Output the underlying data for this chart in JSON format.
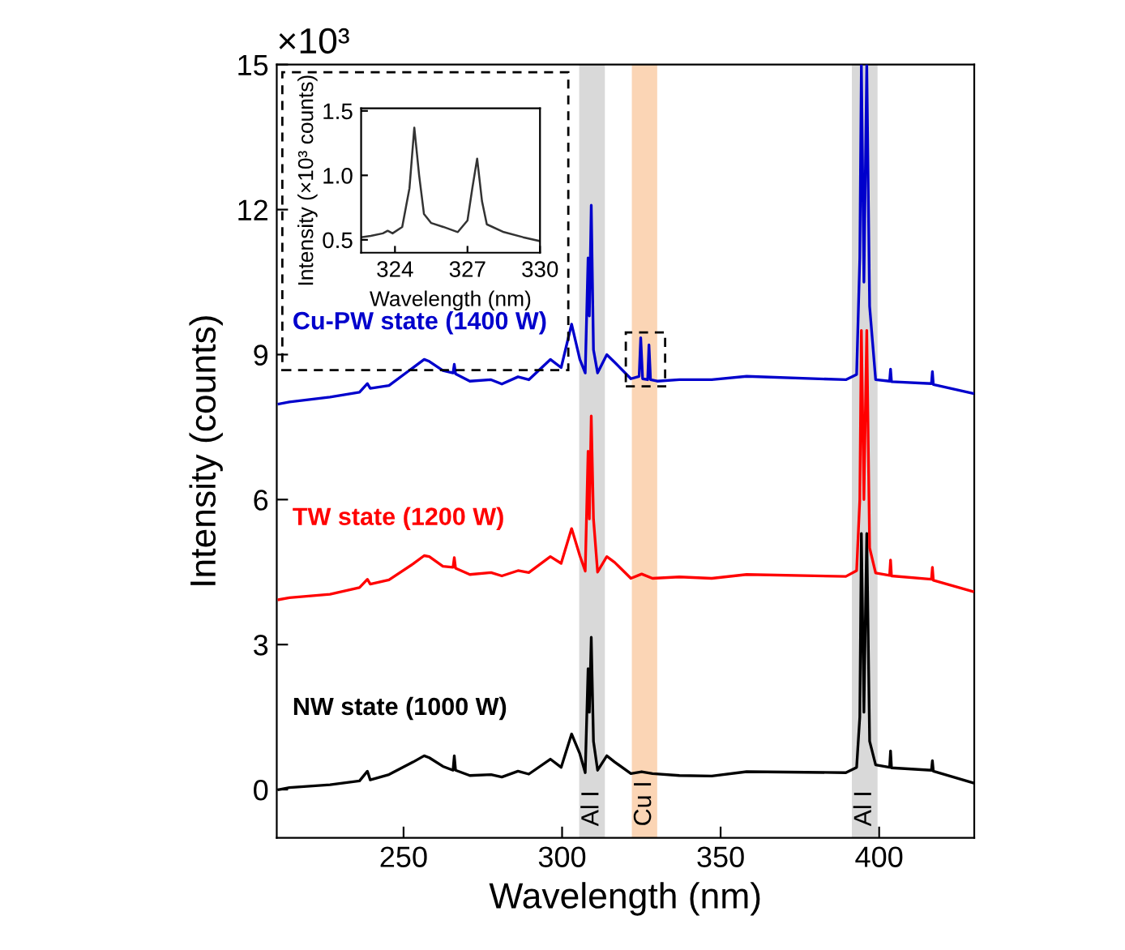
{
  "chart_data": [
    {
      "type": "line",
      "xlabel": "Wavelength (nm)",
      "ylabel": "Intensity (counts)",
      "xlim": [
        210,
        430
      ],
      "ylim": [
        -1,
        15
      ],
      "xticks": [
        250,
        300,
        350,
        400
      ],
      "yticks": [
        0,
        3,
        6,
        9,
        12,
        15
      ],
      "annotations": [
        "×10³"
      ],
      "bands": [
        {
          "axis": "x",
          "from": 305.4,
          "to": 313.5,
          "label": "Al I",
          "color": "#d9d9d9"
        },
        {
          "axis": "x",
          "from": 322,
          "to": 330,
          "label": "Cu I",
          "color": "#fbd5b5"
        },
        {
          "axis": "x",
          "from": 391.4,
          "to": 399.5,
          "label": "Al I",
          "color": "#d9d9d9"
        }
      ],
      "series": [
        {
          "name": "NW state (1000 W)",
          "color": "#000000",
          "x": [
            210.7,
            214,
            226.8,
            236.1,
            238.6,
            239.5,
            245.4,
            253,
            256.5,
            258.1,
            262.4,
            265.6,
            266,
            266.4,
            270.9,
            277.6,
            281,
            286.1,
            289.5,
            296.3,
            299.7,
            303,
            305.6,
            307.3,
            308.2,
            308.6,
            309.2,
            309.9,
            311.2,
            314.1,
            316.6,
            321.7,
            325.1,
            328.5,
            337,
            347.2,
            358.2,
            389.5,
            392.9,
            393.9,
            394.4,
            395.2,
            396.1,
            397,
            398.9,
            403.3,
            403.6,
            403.9,
            416.5,
            416.8,
            417.1,
            429.5
          ],
          "values": [
            0,
            0.04,
            0.1,
            0.18,
            0.38,
            0.2,
            0.31,
            0.57,
            0.7,
            0.66,
            0.48,
            0.4,
            0.7,
            0.4,
            0.29,
            0.31,
            0.26,
            0.38,
            0.32,
            0.63,
            0.46,
            1.15,
            0.74,
            0.35,
            2.5,
            1.6,
            3.15,
            1.0,
            0.4,
            0.7,
            0.57,
            0.33,
            0.37,
            0.33,
            0.29,
            0.28,
            0.37,
            0.35,
            0.46,
            1.5,
            5.3,
            1.6,
            5.3,
            1.0,
            0.51,
            0.46,
            0.8,
            0.45,
            0.4,
            0.6,
            0.38,
            0.14
          ]
        },
        {
          "name": "TW state (1200 W)",
          "color": "#ff0000",
          "x": [
            210.7,
            214,
            226.8,
            236.1,
            238.6,
            239.5,
            245.4,
            253,
            256.5,
            258.1,
            262.4,
            265.6,
            266,
            266.4,
            270.9,
            277.6,
            281,
            286.1,
            289.5,
            296.3,
            299.7,
            303,
            305.6,
            307.3,
            308.2,
            308.6,
            309.2,
            309.9,
            311.2,
            314.1,
            316.6,
            321.7,
            325.1,
            328.5,
            337,
            347.2,
            358.2,
            389.5,
            392.9,
            393.9,
            394.4,
            395.2,
            396.1,
            397,
            398.9,
            403.3,
            403.6,
            403.9,
            416.5,
            416.8,
            417.1,
            429.5
          ],
          "values": [
            3.93,
            3.97,
            4.04,
            4.18,
            4.35,
            4.25,
            4.34,
            4.67,
            4.84,
            4.82,
            4.62,
            4.6,
            4.8,
            4.58,
            4.45,
            4.49,
            4.42,
            4.53,
            4.49,
            4.82,
            4.68,
            5.4,
            4.84,
            4.52,
            7.0,
            5.6,
            7.73,
            5.6,
            4.5,
            4.82,
            4.7,
            4.37,
            4.46,
            4.37,
            4.4,
            4.37,
            4.45,
            4.41,
            4.53,
            6.0,
            9.5,
            6.0,
            9.5,
            5.0,
            4.48,
            4.43,
            4.75,
            4.42,
            4.35,
            4.6,
            4.33,
            4.1
          ]
        },
        {
          "name": "Cu-PW state (1400 W)",
          "color": "#0000cc",
          "x": [
            210.7,
            214,
            226.8,
            236.1,
            238.6,
            239.5,
            245.4,
            253,
            256.5,
            258.1,
            262.4,
            265.6,
            266,
            266.4,
            270.9,
            277.6,
            281,
            286.1,
            289.5,
            296.3,
            299.7,
            303,
            305.6,
            307.3,
            308.2,
            308.6,
            309.2,
            309.9,
            311.2,
            314.1,
            316.6,
            321.7,
            324.3,
            324.8,
            325.4,
            327.0,
            327.4,
            327.9,
            330,
            337,
            347.2,
            358.2,
            389.5,
            392.9,
            393.9,
            394.4,
            395.2,
            396.1,
            397,
            398.9,
            403.3,
            403.6,
            403.9,
            416.5,
            416.8,
            417.1,
            429.5
          ],
          "values": [
            7.98,
            8.02,
            8.12,
            8.22,
            8.4,
            8.3,
            8.36,
            8.73,
            8.9,
            8.86,
            8.67,
            8.62,
            8.8,
            8.6,
            8.45,
            8.48,
            8.39,
            8.54,
            8.48,
            8.9,
            8.73,
            9.63,
            8.9,
            8.62,
            11.0,
            9.8,
            12.09,
            9.1,
            8.62,
            9.0,
            8.84,
            8.5,
            8.55,
            9.35,
            8.5,
            8.48,
            9.2,
            8.48,
            8.45,
            8.48,
            8.48,
            8.55,
            8.48,
            8.59,
            11.0,
            15,
            10.5,
            15,
            10.0,
            8.48,
            8.45,
            8.7,
            8.44,
            8.4,
            8.65,
            8.38,
            8.2
          ]
        }
      ]
    },
    {
      "type": "line",
      "xlabel": "Wavelength (nm)",
      "ylabel": "Intensity (×10³ counts)",
      "xlim": [
        322.6,
        330
      ],
      "ylim": [
        0.4,
        1.52
      ],
      "xticks": [
        324,
        327,
        330
      ],
      "yticks": [
        {
          "value": 0.5,
          "label": "0.5"
        },
        {
          "value": 1.0,
          "label": "1.0"
        },
        1.5
      ],
      "series": [
        {
          "color": "#333333",
          "x": [
            322.6,
            323.0,
            323.5,
            323.7,
            323.9,
            324.3,
            324.6,
            324.8,
            325.0,
            325.2,
            325.5,
            326.0,
            326.6,
            327.0,
            327.2,
            327.4,
            327.6,
            327.8,
            328.5,
            329.3,
            330
          ],
          "values": [
            0.52,
            0.53,
            0.55,
            0.57,
            0.55,
            0.6,
            0.9,
            1.37,
            1.0,
            0.7,
            0.63,
            0.6,
            0.56,
            0.65,
            0.9,
            1.13,
            0.8,
            0.62,
            0.56,
            0.52,
            0.49
          ]
        }
      ]
    }
  ]
}
